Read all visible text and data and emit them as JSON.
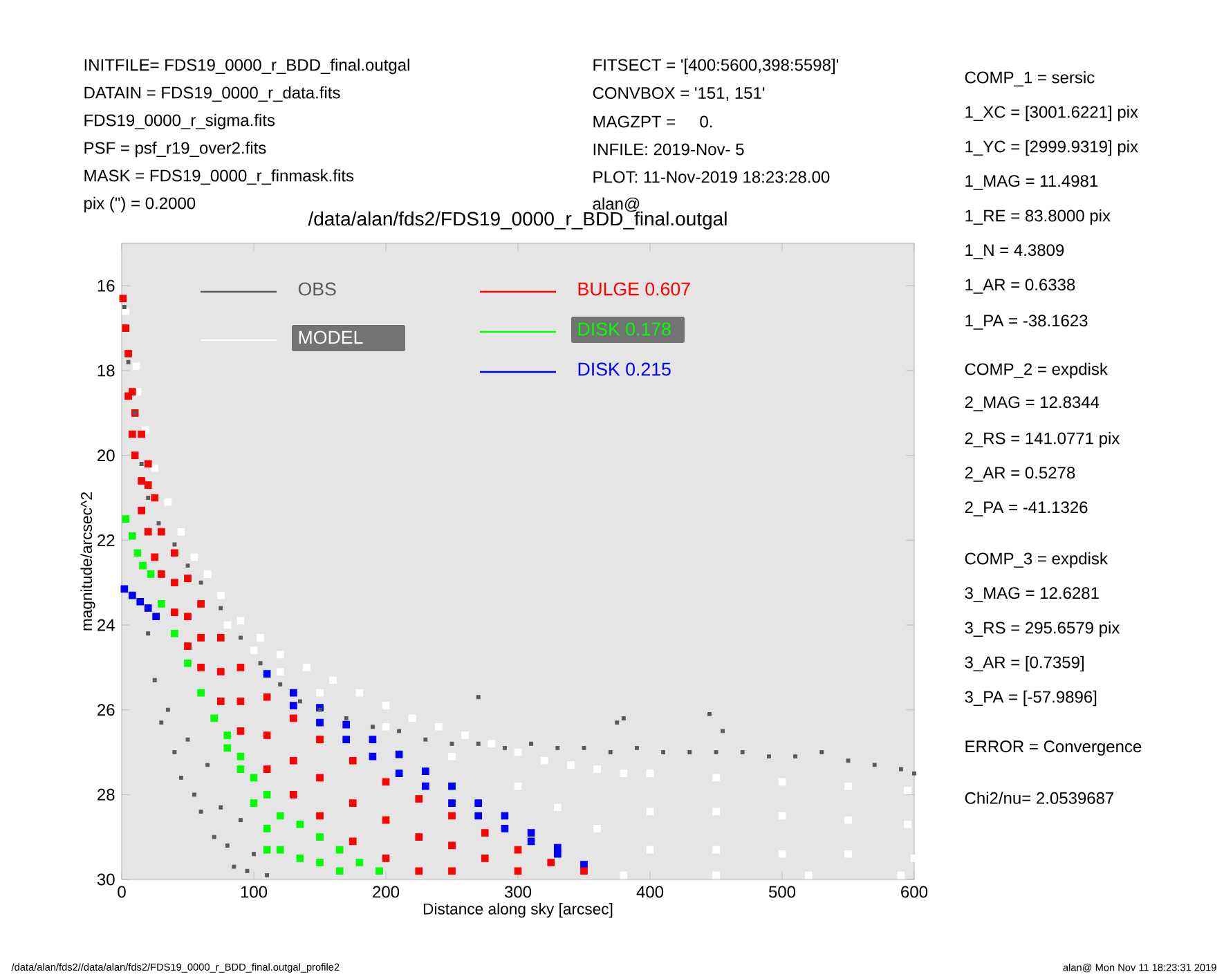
{
  "chart_data": {
    "type": "scatter",
    "title": "/data/alan/fds2/FDS19_0000_r_BDD_final.outgal",
    "xlabel": "Distance along sky [arcsec]",
    "ylabel": "magnitude/arcsec^2",
    "xlim": [
      0,
      600
    ],
    "xticks": [
      0,
      100,
      200,
      300,
      400,
      500,
      600
    ],
    "ylim": [
      30,
      15
    ],
    "yticks": [
      16,
      18,
      20,
      22,
      24,
      26,
      28,
      30
    ],
    "legend": "top",
    "marker": "square",
    "series": [
      {
        "name": "MODEL",
        "color": "#ffffff",
        "x": [
          3,
          11,
          12,
          18,
          25,
          35,
          45,
          55,
          65,
          75,
          90,
          105,
          120,
          140,
          160,
          180,
          200,
          220,
          240,
          260,
          280,
          300,
          320,
          340,
          360,
          380,
          400,
          450,
          500,
          550,
          595,
          150,
          200,
          250,
          300,
          330,
          360,
          400,
          450,
          500,
          550,
          595,
          400,
          450,
          500,
          550,
          600,
          380,
          450,
          520,
          590,
          120,
          100,
          80
        ],
        "values": [
          16.6,
          17.9,
          18.5,
          19.4,
          20.3,
          21.1,
          21.8,
          22.4,
          22.8,
          23.3,
          23.9,
          24.3,
          24.7,
          25.0,
          25.3,
          25.6,
          25.9,
          26.2,
          26.4,
          26.6,
          26.8,
          27.0,
          27.2,
          27.3,
          27.4,
          27.5,
          27.5,
          27.6,
          27.7,
          27.8,
          27.9,
          25.6,
          26.4,
          27.1,
          27.8,
          28.3,
          28.8,
          28.4,
          28.4,
          28.5,
          28.6,
          28.7,
          29.3,
          29.3,
          29.4,
          29.4,
          29.5,
          29.9,
          29.9,
          29.9,
          29.9,
          25.1,
          24.6,
          24.0
        ]
      },
      {
        "name": "DISK  0.215",
        "color": "#0000ff",
        "x": [
          2,
          8,
          14,
          20,
          26,
          110,
          130,
          130,
          150,
          150,
          170,
          170,
          190,
          190,
          210,
          210,
          230,
          230,
          250,
          250,
          270,
          270,
          290,
          290,
          310,
          310,
          330,
          330,
          350
        ],
        "values": [
          23.15,
          23.3,
          23.45,
          23.6,
          23.8,
          25.15,
          25.6,
          25.9,
          25.95,
          26.3,
          26.35,
          26.7,
          26.7,
          27.1,
          27.05,
          27.5,
          27.45,
          27.8,
          27.8,
          28.2,
          28.2,
          28.5,
          28.5,
          28.8,
          28.9,
          29.1,
          29.25,
          29.4,
          29.65
        ]
      },
      {
        "name": "DISK  0.178",
        "color": "#00ff00",
        "x": [
          3,
          8,
          12,
          16,
          22,
          30,
          40,
          50,
          60,
          70,
          80,
          80,
          90,
          90,
          100,
          100,
          110,
          110,
          110,
          120,
          120,
          135,
          135,
          150,
          150,
          165,
          165,
          180,
          195
        ],
        "values": [
          21.5,
          21.9,
          22.3,
          22.6,
          22.8,
          23.5,
          24.2,
          24.9,
          25.6,
          26.2,
          26.6,
          26.9,
          27.1,
          27.4,
          27.6,
          28.2,
          28.0,
          28.8,
          29.3,
          28.5,
          29.3,
          28.7,
          29.5,
          29.0,
          29.6,
          29.3,
          29.8,
          29.6,
          29.8
        ]
      },
      {
        "name": "BULGE  0.607",
        "color": "#ff0000",
        "x": [
          1,
          3,
          5,
          5,
          8,
          8,
          10,
          10,
          15,
          15,
          15,
          20,
          20,
          20,
          25,
          25,
          30,
          30,
          40,
          40,
          40,
          50,
          50,
          50,
          60,
          60,
          60,
          75,
          75,
          75,
          90,
          90,
          90,
          110,
          110,
          110,
          130,
          130,
          130,
          150,
          150,
          150,
          175,
          175,
          175,
          200,
          200,
          200,
          225,
          225,
          225,
          250,
          250,
          250,
          275,
          275,
          300,
          300,
          325,
          350
        ],
        "values": [
          16.3,
          17.0,
          17.6,
          18.6,
          18.5,
          19.5,
          19.0,
          20.0,
          19.5,
          20.6,
          21.3,
          20.2,
          20.7,
          21.8,
          21.0,
          22.4,
          21.8,
          22.8,
          22.3,
          23.0,
          23.7,
          22.9,
          23.8,
          24.5,
          23.5,
          24.3,
          25.0,
          24.3,
          25.1,
          25.8,
          25.0,
          25.8,
          26.5,
          25.7,
          26.6,
          27.4,
          26.2,
          27.2,
          28.0,
          26.7,
          27.6,
          28.5,
          27.2,
          28.2,
          29.1,
          27.7,
          28.6,
          29.5,
          28.1,
          29.0,
          29.8,
          28.5,
          29.2,
          29.8,
          28.9,
          29.5,
          29.3,
          29.8,
          29.6,
          29.8
        ]
      },
      {
        "name": "OBS",
        "color": "#5a5a5a",
        "x": [
          2,
          5,
          10,
          15,
          20,
          28,
          40,
          50,
          60,
          75,
          90,
          105,
          120,
          135,
          150,
          170,
          190,
          210,
          230,
          250,
          270,
          290,
          310,
          330,
          350,
          370,
          390,
          410,
          430,
          450,
          470,
          490,
          510,
          530,
          550,
          570,
          590,
          600,
          270,
          380,
          445,
          455,
          375,
          20,
          25,
          30,
          35,
          40,
          45,
          50,
          55,
          60,
          65,
          70,
          80,
          85,
          95,
          100,
          110,
          75,
          90
        ],
        "values": [
          16.5,
          17.8,
          19.0,
          20.2,
          21.0,
          21.6,
          22.1,
          22.6,
          23.0,
          23.6,
          24.3,
          24.9,
          25.4,
          25.8,
          26.0,
          26.2,
          26.4,
          26.5,
          26.7,
          26.8,
          26.8,
          26.9,
          26.8,
          26.9,
          26.9,
          27.0,
          26.9,
          27.0,
          27.0,
          27.0,
          27.0,
          27.1,
          27.1,
          27.0,
          27.2,
          27.3,
          27.4,
          27.5,
          25.7,
          26.2,
          26.1,
          26.5,
          26.3,
          24.2,
          25.3,
          26.3,
          26.0,
          27.0,
          27.6,
          26.7,
          28.0,
          28.4,
          27.3,
          29.0,
          29.2,
          29.7,
          29.8,
          29.4,
          29.9,
          28.3,
          28.6
        ]
      }
    ],
    "annotations": [
      "INITFILE= FDS19_0000_r_BDD_final.outgal",
      "DATAIN  = FDS19_0000_r_data.fits",
      "FDS19_0000_r_sigma.fits",
      "PSF     = psf_r19_over2.fits",
      "MASK    = FDS19_0000_r_finmask.fits",
      "pix (\") =  0.2000",
      "FITSECT = '[400:5600,398:5598]'",
      "CONVBOX = '151, 151'",
      "MAGZPT  =",
      "0.",
      "INFILE: 2019-Nov- 5",
      "PLOT: 11-Nov-2019 18:23:28.00",
      "alan@",
      "COMP_1  = sersic",
      "1_XC    = [3001.6221] pix",
      "1_YC    = [2999.9319] pix",
      "1_MAG   = 11.4981",
      "1_RE    = 83.8000 pix",
      "1_N    = 4.3809",
      "1_AR    = 0.6338",
      "1_PA    = -38.1623",
      "COMP_2  = expdisk",
      "2_MAG   = 12.8344",
      "2_RS    = 141.0771 pix",
      "2_AR    = 0.5278",
      "2_PA    = -41.1326",
      "COMP_3  = expdisk",
      "3_MAG   = 12.6281",
      "3_RS    = 295.6579 pix",
      "3_AR    = [0.7359]",
      "3_PA    = [-57.9896]",
      "ERROR   = Convergence",
      "Chi2/nu=      2.0539687",
      "/data/alan/fds2//data/alan/fds2/FDS19_0000_r_BDD_final.outgal_profile2",
      "alan@  Mon Nov 11 18:23:31 2019"
    ]
  }
}
